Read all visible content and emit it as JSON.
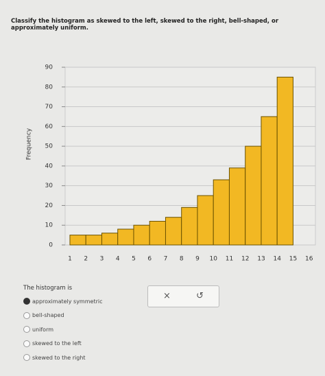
{
  "question": "Classify the histogram as skewed to the left, skewed to the right, bell-shaped, or approximately uniform.",
  "chart_data": {
    "type": "histogram",
    "ylabel": "Frequency",
    "bins": [
      1,
      2,
      3,
      4,
      5,
      6,
      7,
      8,
      9,
      10,
      11,
      12,
      13,
      14,
      15
    ],
    "values": [
      5,
      5,
      6,
      8,
      10,
      12,
      14,
      19,
      25,
      33,
      39,
      50,
      65,
      85
    ],
    "color": "#f2b823",
    "xlim": [
      0.7,
      16.4
    ],
    "xticks": [
      1,
      2,
      3,
      4,
      5,
      6,
      7,
      8,
      9,
      10,
      11,
      12,
      13,
      14,
      15,
      16
    ],
    "ylim": [
      0,
      90
    ],
    "yticks": [
      0,
      10,
      20,
      30,
      40,
      50,
      60,
      70,
      80,
      90
    ],
    "grid": true
  },
  "prompt": "The histogram is",
  "answer_box": {
    "clear": "×",
    "undo": "↺"
  },
  "options": [
    "approximately symmetric",
    "bell-shaped",
    "uniform",
    "skewed to the left",
    "skewed to the right"
  ]
}
